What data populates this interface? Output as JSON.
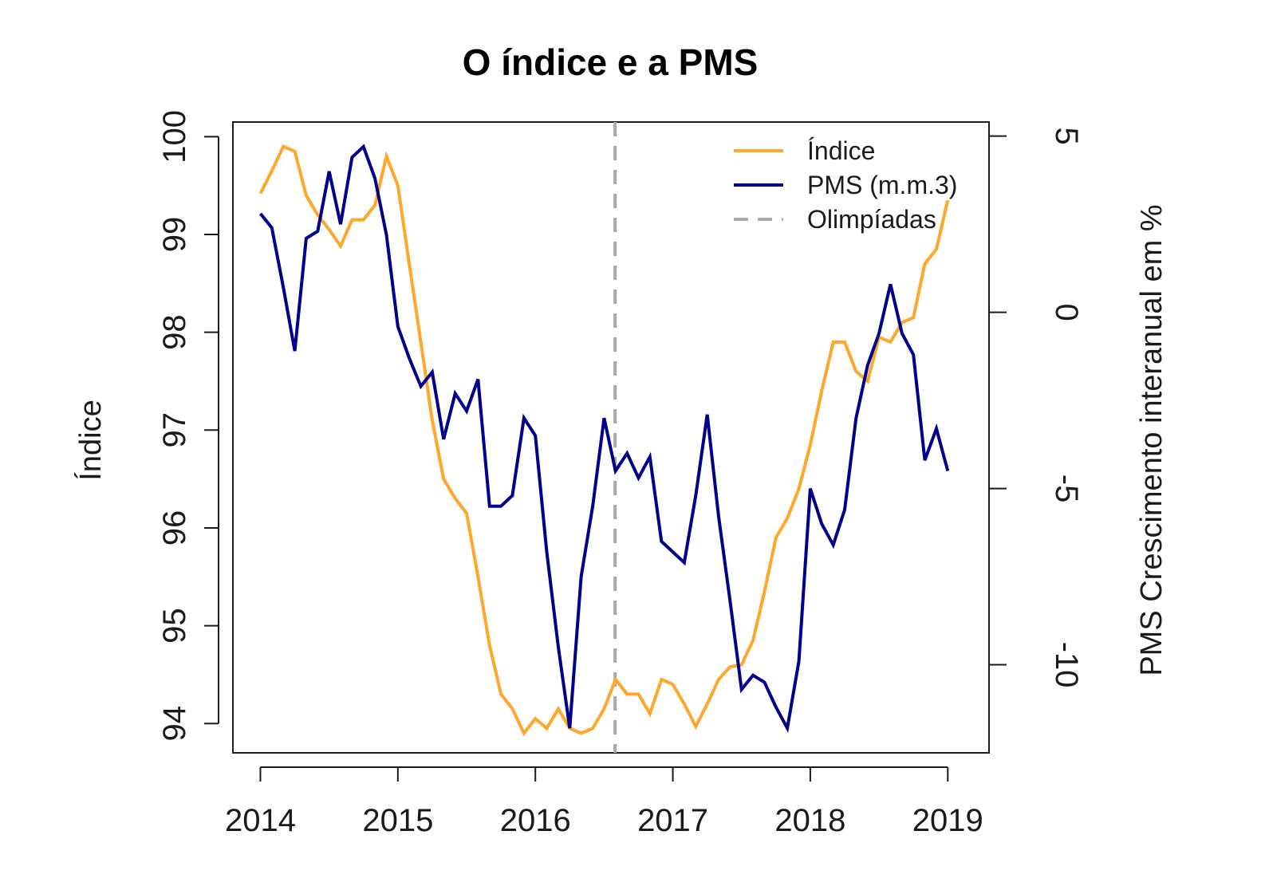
{
  "chart_data": {
    "type": "line",
    "title": "O índice e a PMS",
    "xlabel": "",
    "ylabel": "Índice",
    "y2label": "PMS Crescimento interanual em %",
    "xlim": [
      2013.8,
      2019.3
    ],
    "ylim": [
      93.7,
      100.15
    ],
    "y2lim": [
      -12.5,
      5.4
    ],
    "x_ticks": [
      "2014",
      "2015",
      "2016",
      "2017",
      "2018",
      "2019"
    ],
    "y_ticks": [
      "94",
      "95",
      "96",
      "97",
      "98",
      "99",
      "100"
    ],
    "y2_ticks": [
      "5",
      "0",
      "-5",
      "-10"
    ],
    "grid": false,
    "legend_position": "top-right",
    "colors": {
      "indice": "#FFA62B",
      "pms": "#00008B",
      "olimpiadas": "#AAAAAA",
      "axis": "#1A1A1A"
    },
    "vline": {
      "name": "Olimpíadas",
      "x": 2016.58,
      "style": "dashed"
    },
    "series": [
      {
        "name": "Índice",
        "axis": "left",
        "x": [
          2014.0,
          2014.083,
          2014.167,
          2014.25,
          2014.333,
          2014.417,
          2014.5,
          2014.583,
          2014.667,
          2014.75,
          2014.833,
          2014.917,
          2015.0,
          2015.083,
          2015.167,
          2015.25,
          2015.333,
          2015.417,
          2015.5,
          2015.583,
          2015.667,
          2015.75,
          2015.833,
          2015.917,
          2016.0,
          2016.083,
          2016.167,
          2016.25,
          2016.333,
          2016.417,
          2016.5,
          2016.583,
          2016.667,
          2016.75,
          2016.833,
          2016.917,
          2017.0,
          2017.083,
          2017.167,
          2017.25,
          2017.333,
          2017.417,
          2017.5,
          2017.583,
          2017.667,
          2017.75,
          2017.833,
          2017.917,
          2018.0,
          2018.083,
          2018.167,
          2018.25,
          2018.333,
          2018.417,
          2018.5,
          2018.583,
          2018.667,
          2018.75,
          2018.833,
          2018.917,
          2019.0
        ],
        "values": [
          99.42,
          99.65,
          99.9,
          99.85,
          99.4,
          99.2,
          99.05,
          98.88,
          99.15,
          99.15,
          99.3,
          99.8,
          99.5,
          98.7,
          97.9,
          97.1,
          96.5,
          96.3,
          96.15,
          95.5,
          94.8,
          94.3,
          94.15,
          93.9,
          94.05,
          93.95,
          94.15,
          93.95,
          93.9,
          93.95,
          94.15,
          94.45,
          94.3,
          94.3,
          94.1,
          94.45,
          94.4,
          94.2,
          93.97,
          94.2,
          94.45,
          94.58,
          94.6,
          94.85,
          95.35,
          95.9,
          96.1,
          96.4,
          96.85,
          97.4,
          97.9,
          97.9,
          97.6,
          97.5,
          97.95,
          97.9,
          98.1,
          98.15,
          98.7,
          98.85,
          99.35
        ]
      },
      {
        "name": "PMS (m.m.3)",
        "axis": "right",
        "x": [
          2014.0,
          2014.083,
          2014.167,
          2014.25,
          2014.333,
          2014.417,
          2014.5,
          2014.583,
          2014.667,
          2014.75,
          2014.833,
          2014.917,
          2015.0,
          2015.083,
          2015.167,
          2015.25,
          2015.333,
          2015.417,
          2015.5,
          2015.583,
          2015.667,
          2015.75,
          2015.833,
          2015.917,
          2016.0,
          2016.083,
          2016.167,
          2016.25,
          2016.333,
          2016.417,
          2016.5,
          2016.583,
          2016.667,
          2016.75,
          2016.833,
          2016.917,
          2017.0,
          2017.083,
          2017.167,
          2017.25,
          2017.333,
          2017.417,
          2017.5,
          2017.583,
          2017.667,
          2017.75,
          2017.833,
          2017.917,
          2018.0,
          2018.083,
          2018.167,
          2018.25,
          2018.333,
          2018.417,
          2018.5,
          2018.583,
          2018.667,
          2018.75,
          2018.833,
          2018.917,
          2019.0
        ],
        "values": [
          2.8,
          2.4,
          0.7,
          -1.1,
          2.1,
          2.3,
          4.0,
          2.5,
          4.4,
          4.7,
          3.8,
          2.2,
          -0.4,
          -1.3,
          -2.1,
          -1.7,
          -3.6,
          -2.3,
          -2.8,
          -1.9,
          -5.5,
          -5.5,
          -5.2,
          -3.0,
          -3.5,
          -6.8,
          -9.5,
          -11.8,
          -7.5,
          -5.5,
          -3.0,
          -4.5,
          -4.0,
          -4.7,
          -4.1,
          -6.5,
          -6.8,
          -7.1,
          -5.2,
          -2.9,
          -5.8,
          -8.2,
          -10.7,
          -10.3,
          -10.5,
          -11.2,
          -11.8,
          -9.9,
          -5.0,
          -6.0,
          -6.6,
          -5.6,
          -3.0,
          -1.5,
          -0.6,
          0.8,
          -0.6,
          -1.2,
          -4.2,
          -3.3,
          -4.5
        ]
      }
    ]
  }
}
